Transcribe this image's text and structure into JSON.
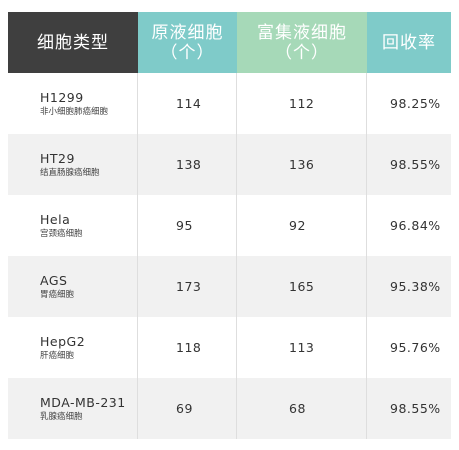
{
  "header": {
    "col0": "细胞类型",
    "col1_line1": "原液细胞",
    "col1_line2": "（个）",
    "col2_line1": "富集液细胞",
    "col2_line2": "（个）",
    "col3": "回收率"
  },
  "rows": [
    {
      "name": "H1299",
      "desc": "非小细胞肺癌细胞",
      "original": "114",
      "enriched": "112",
      "recovery": "98.25%"
    },
    {
      "name": "HT29",
      "desc": "结直肠腺癌细胞",
      "original": "138",
      "enriched": "136",
      "recovery": "98.55%"
    },
    {
      "name": "Hela",
      "desc": "宫颈癌细胞",
      "original": "95",
      "enriched": "92",
      "recovery": "96.84%"
    },
    {
      "name": "AGS",
      "desc": "胃癌细胞",
      "original": "173",
      "enriched": "165",
      "recovery": "95.38%"
    },
    {
      "name": "HepG2",
      "desc": "肝癌细胞",
      "original": "118",
      "enriched": "113",
      "recovery": "95.76%"
    },
    {
      "name": "MDA-MB-231",
      "desc": "乳腺癌细胞",
      "original": "69",
      "enriched": "68",
      "recovery": "98.55%"
    }
  ],
  "colors": {
    "header_dark": "#3f3f3f",
    "header_teal": "#7fcbc9",
    "header_green": "#a6d9b8",
    "row_alt": "#f1f1f1"
  }
}
